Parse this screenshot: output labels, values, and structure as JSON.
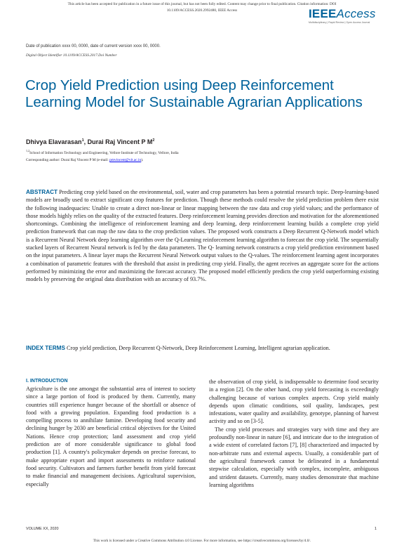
{
  "header": {
    "notice_line1": "This article has been accepted for publication in a future issue of this journal, but has not been fully edited. Content may change prior to final publication. Citation information: DOI",
    "notice_line2": "10.1109/ACCESS.2020.2992480, IEEE Access",
    "logo_bold": "IEEE",
    "logo_italic": "Access",
    "logo_tagline": "Multidisciplinary | Rapid Review | Open Access Journal"
  },
  "meta": {
    "pubdate": "Date of publication xxxx 00, 0000, date of current version xxxx 00, 0000.",
    "doi": "Digital Object Identifier 10.1109/ACCESS.2017.Doi Number"
  },
  "title": "Crop Yield Prediction using Deep Reinforcement Learning Model for Sustainable Agrarian Applications",
  "authors": {
    "author1": "Dhivya Elavarasan",
    "author1_sup": "1",
    "sep": ", ",
    "author2": "Durai Raj Vincent P M",
    "author2_sup": "2",
    "affil_sup": "1,2",
    "affiliation": "School of Information Technology and Engineering, Vellore Institute of Technology, Vellore, India",
    "corr_prefix": "Corresponding author: Durai Raj Vincent P M (e-mail: ",
    "corr_email": "pmvincent@vit.ac.in",
    "corr_suffix": ")."
  },
  "abstract": {
    "heading": "ABSTRACT",
    "text": "Predicting crop yield based on the environmental, soil, water and crop parameters has been a potential research topic. Deep-learning-based models are broadly used to extract significant crop features for prediction. Though these methods could resolve the yield prediction problem there exist the following inadequacies: Unable to create a direct non-linear or linear mapping between the raw data and crop yield values; and the performance of those models highly relies on the quality of the extracted features. Deep reinforcement learning provides direction and motivation for the aforementioned shortcomings. Combining the intelligence of reinforcement learning and deep learning, deep reinforcement learning builds a complete crop yield prediction framework that can map the raw data to the crop prediction values. The proposed work constructs a Deep Recurrent Q-Network model which is a Recurrent Neural Network deep learning algorithm over the Q-Learning reinforcement learning algorithm to forecast the crop yield. The sequentially stacked layers of Recurrent Neural network is fed by the data parameters. The Q- learning network constructs a crop yield prediction environment based on the input parameters. A linear layer maps the Recurrent Neural Network output values to the Q-values. The reinforcement learning agent incorporates a combination of parametric features with the threshold that assist in predicting crop yield. Finally, the agent receives an aggregate score for the actions performed by minimizing the error and maximizing the forecast accuracy. The proposed model efficiently predicts the crop yield outperforming existing models by preserving the original data distribution with an accuracy of 93.7%."
  },
  "index_terms": {
    "heading": "INDEX TERMS",
    "text": "Crop yield prediction, Deep Recurrent Q-Network, Deep Reinforcement Learning, Intelligent agrarian application."
  },
  "body": {
    "section_heading": "I.  INTRODUCTION",
    "left_para": "Agriculture is the one amongst the substantial area of interest to society since a large portion of food is produced by them. Currently, many countries still experience hunger because of the shortfall or absence of food with a growing population. Expanding food production is a compelling process to annihilate famine. Developing food security and declining hunger by 2030 are beneficial critical objectives for the United Nations.  Hence crop protection; land assessment and crop yield prediction are of more considerable significance to global food production [1]. A country's policymaker depends on precise forecast, to make appropriate export and import assessments to reinforce national food security. Cultivators and farmers further benefit from yield forecast to make financial and management decisions. Agricultural supervision, especially",
    "right_para1": "the observation of crop yield, is indispensable to determine food security in a region [2]. On the other hand, crop yield forecasting is exceedingly challenging because of various complex aspects. Crop yield mainly depends upon climatic conditions, soil quality, landscapes, pest infestations, water quality and availability, genotype, planning of harvest activity and so on [3-5].",
    "right_para2": "The crop yield processes and strategies vary with time and they are profoundly non-linear in nature [6], and intricate due to the integration of a wide extent of correlated factors [7], [8] characterized and impacted by non-arbitrate runs and external aspects. Usually, a considerable part of the agricultural framework cannot be delineated in a fundamental stepwise calculation, especially with complex, incomplete, ambiguous and strident datasets. Currently, many studies demonstrate that machine learning algorithms"
  },
  "footer": {
    "volume": "VOLUME XX, 2020",
    "page": "1",
    "license": "This work is licensed under a Creative Commons Attribution 4.0 License. For more information, see https://creativecommons.org/licenses/by/4.0/."
  }
}
